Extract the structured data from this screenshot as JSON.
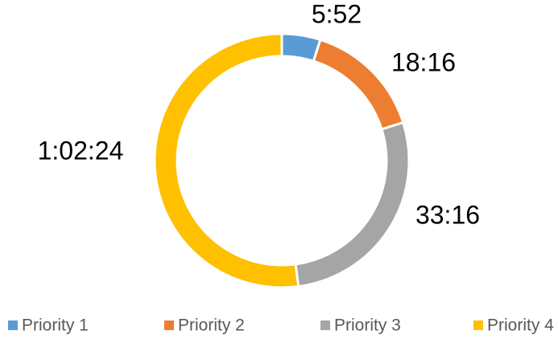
{
  "chart_data": {
    "type": "donut",
    "categories": [
      "Priority 1",
      "Priority 2",
      "Priority 3",
      "Priority 4"
    ],
    "values": [
      352,
      1096,
      1996,
      3744
    ],
    "value_labels": [
      "5:52",
      "18:16",
      "33:16",
      "1:02:24"
    ],
    "colors": [
      "#5b9bd5",
      "#ed7d31",
      "#a5a5a5",
      "#ffc000"
    ],
    "legend": "bottom"
  }
}
